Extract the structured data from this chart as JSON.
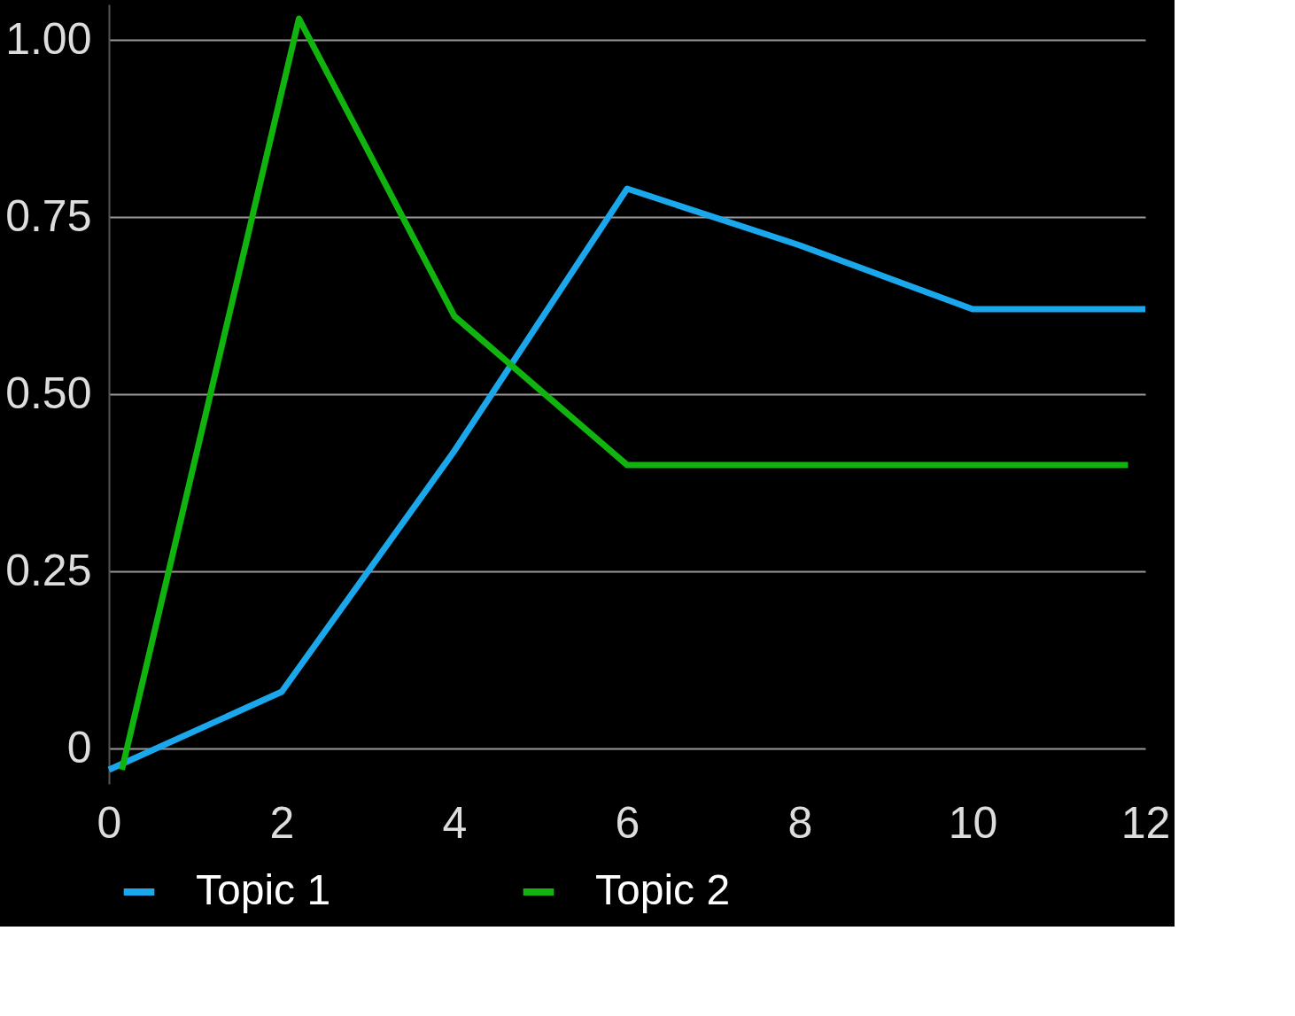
{
  "chart_data": {
    "type": "line",
    "xlim": [
      0,
      12
    ],
    "ylim": [
      -0.05,
      1.05
    ],
    "xticks": [
      0,
      2,
      4,
      6,
      8,
      10,
      12
    ],
    "yticks": [
      0,
      {
        "value": 0.25,
        "label": "0.25"
      },
      {
        "value": 0.5,
        "label": "0.50"
      },
      {
        "value": 0.75,
        "label": "0.75"
      },
      {
        "value": 1,
        "label": "1.00"
      }
    ],
    "grid": "y",
    "legend": "bottom",
    "line_style": "solid",
    "marker": "none",
    "series": [
      {
        "name": "Topic 1",
        "color": "#1aa7ec",
        "x": [
          0,
          2,
          4,
          6,
          8,
          10,
          12
        ],
        "values": [
          -0.03,
          0.08,
          0.42,
          0.79,
          0.71,
          0.62,
          0.62
        ]
      },
      {
        "name": "Topic 2",
        "color": "#11b30f",
        "x": [
          0.15,
          2.2,
          4,
          6,
          8,
          10,
          11.8
        ],
        "values": [
          -0.03,
          1.03,
          0.61,
          0.4,
          0.4,
          0.4,
          0.4
        ]
      }
    ]
  }
}
